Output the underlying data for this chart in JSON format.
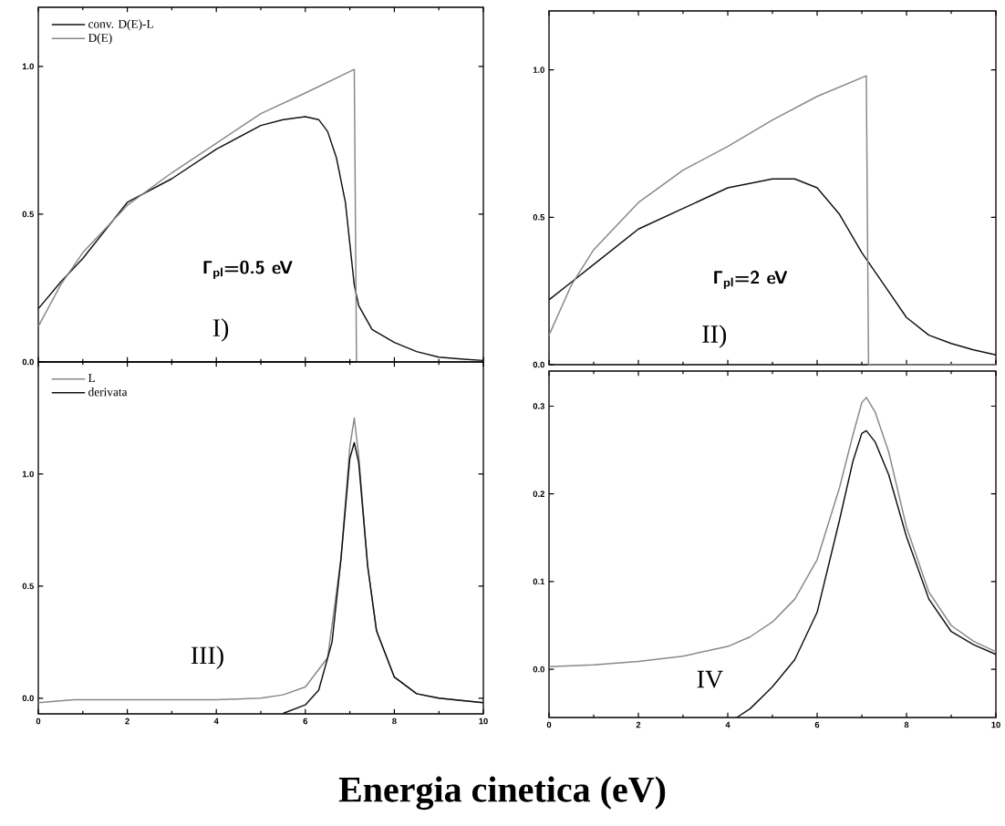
{
  "chart_data": [
    {
      "type": "line",
      "xlim": [
        0,
        10
      ],
      "ylim": [
        0,
        1.2
      ],
      "xticks": [
        0,
        2,
        4,
        6,
        8,
        10
      ],
      "yticks": [
        {
          "value": 0,
          "label": "0.0"
        },
        {
          "value": 0.5,
          "label": "0.5"
        },
        {
          "value": 1,
          "label": "1.0"
        }
      ],
      "tick_labels": "y",
      "legend": "top left",
      "marker": "none",
      "annotations": [
        "Γ$_{pl}$=0.5 eV",
        "I)"
      ],
      "series": [
        {
          "name": "conv. D(E)-L",
          "color": "#111111",
          "x": [
            0,
            0.5,
            1,
            2,
            3,
            4,
            5,
            5.5,
            6,
            6.3,
            6.5,
            6.7,
            6.9,
            7.0,
            7.1,
            7.2,
            7.5,
            8,
            8.5,
            9,
            9.5,
            10
          ],
          "values": [
            0.18,
            0.27,
            0.35,
            0.54,
            0.62,
            0.72,
            0.8,
            0.82,
            0.83,
            0.82,
            0.78,
            0.69,
            0.54,
            0.4,
            0.26,
            0.19,
            0.11,
            0.066,
            0.035,
            0.016,
            0.01,
            0.005
          ]
        },
        {
          "name": "D(E)",
          "color": "#888888",
          "x": [
            0,
            0.5,
            1,
            2,
            3,
            4,
            5,
            6,
            7.1,
            7.15,
            8,
            10
          ],
          "values": [
            0.12,
            0.26,
            0.37,
            0.53,
            0.64,
            0.74,
            0.84,
            0.91,
            0.99,
            0,
            0,
            0
          ]
        }
      ]
    },
    {
      "type": "line",
      "xlim": [
        0,
        10
      ],
      "ylim": [
        0,
        1.2
      ],
      "xticks": [
        0,
        2,
        4,
        6,
        8,
        10
      ],
      "yticks": [
        {
          "value": 0,
          "label": "0.0"
        },
        {
          "value": 0.5,
          "label": "0.5"
        },
        {
          "value": 1,
          "label": "1.0"
        }
      ],
      "tick_labels": "y",
      "marker": "none",
      "annotations": [
        "Γ$_{pl}$=2 eV",
        "II)"
      ],
      "series": [
        {
          "color": "#111111",
          "x": [
            0,
            0.5,
            1,
            2,
            3,
            4,
            5,
            5.5,
            6,
            6.5,
            7,
            7.5,
            8,
            8.5,
            9,
            9.5,
            10
          ],
          "values": [
            0.22,
            0.28,
            0.34,
            0.46,
            0.53,
            0.6,
            0.63,
            0.63,
            0.6,
            0.51,
            0.38,
            0.27,
            0.16,
            0.1,
            0.072,
            0.05,
            0.033
          ]
        },
        {
          "color": "#888888",
          "x": [
            0,
            0.5,
            1,
            2,
            3,
            4,
            5,
            6,
            7.1,
            7.15,
            8,
            10
          ],
          "values": [
            0.1,
            0.27,
            0.39,
            0.55,
            0.66,
            0.74,
            0.83,
            0.91,
            0.98,
            0,
            0,
            0
          ]
        }
      ]
    },
    {
      "type": "line",
      "xlim": [
        0,
        10
      ],
      "ylim": [
        -0.07,
        1.5
      ],
      "xticks": [
        0,
        2,
        4,
        6,
        8,
        10
      ],
      "yticks": [
        {
          "value": 0,
          "label": "0.0"
        },
        {
          "value": 0.5,
          "label": "0.5"
        },
        {
          "value": 1,
          "label": "1.0"
        }
      ],
      "legend": "top left",
      "marker": "none",
      "xlabel": "Energia cinetica (eV)",
      "annotations": [
        "III)"
      ],
      "series": [
        {
          "name": "L",
          "color": "#888888",
          "x": [
            0,
            0.8,
            4,
            5,
            5.5,
            6,
            6.5,
            6.8,
            7.0,
            7.1,
            7.2,
            7.4,
            7.6,
            8,
            8.5,
            9,
            10
          ],
          "values": [
            -0.02,
            -0.007,
            -0.007,
            0,
            0.015,
            0.05,
            0.18,
            0.62,
            1.12,
            1.25,
            1.08,
            0.59,
            0.3,
            0.094,
            0.02,
            0,
            -0.02
          ]
        },
        {
          "name": "derivata",
          "color": "#111111",
          "x": [
            5.5,
            6,
            6.3,
            6.6,
            6.8,
            7.0,
            7.1,
            7.2,
            7.4,
            7.6,
            8,
            8.5,
            9,
            10
          ],
          "values": [
            -0.068,
            -0.03,
            0.036,
            0.25,
            0.62,
            1.07,
            1.14,
            1.05,
            0.59,
            0.3,
            0.094,
            0.02,
            0,
            -0.02
          ]
        }
      ]
    },
    {
      "type": "line",
      "xlim": [
        0,
        10
      ],
      "ylim": [
        -0.055,
        0.34
      ],
      "xticks": [
        0,
        2,
        4,
        6,
        8,
        10
      ],
      "yticks": [
        {
          "value": 0,
          "label": "0.0"
        },
        0.1,
        0.2,
        0.3
      ],
      "marker": "none",
      "annotations": [
        "IV"
      ],
      "series": [
        {
          "color": "#888888",
          "x": [
            0,
            1,
            2,
            3,
            4,
            4.5,
            5,
            5.5,
            6,
            6.5,
            6.8,
            7.0,
            7.1,
            7.3,
            7.6,
            8,
            8.5,
            9,
            9.5,
            10
          ],
          "values": [
            0.003,
            0.005,
            0.009,
            0.015,
            0.026,
            0.037,
            0.054,
            0.08,
            0.125,
            0.207,
            0.267,
            0.304,
            0.31,
            0.293,
            0.248,
            0.162,
            0.088,
            0.05,
            0.032,
            0.02
          ]
        },
        {
          "color": "#111111",
          "x": [
            4.2,
            4.5,
            5,
            5.5,
            6,
            6.5,
            6.8,
            7.0,
            7.1,
            7.3,
            7.6,
            8,
            8.5,
            9,
            9.5,
            10
          ],
          "values": [
            -0.055,
            -0.045,
            -0.02,
            0.011,
            0.065,
            0.17,
            0.237,
            0.269,
            0.272,
            0.259,
            0.222,
            0.151,
            0.08,
            0.043,
            0.028,
            0.017
          ]
        }
      ]
    }
  ]
}
